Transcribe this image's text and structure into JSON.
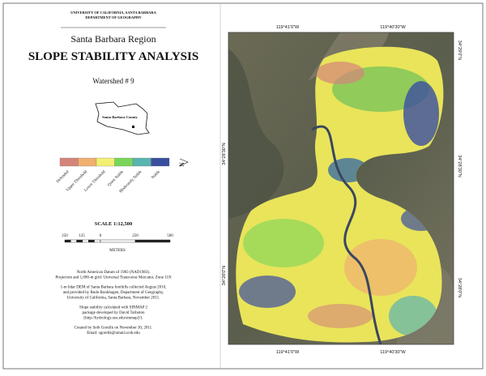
{
  "header": {
    "university": "UNIVERSITY OF CALIFORNIA, SANTA BARBARA",
    "department": "DEPARTMENT OF GEOGRAPHY",
    "region": "Santa Barbara Region",
    "title": "SLOPE STABILITY ANALYSIS",
    "watershed": "Watershed # 9"
  },
  "inset": {
    "label": "Santa Barbara County"
  },
  "legend": {
    "classes": [
      {
        "label": "Defended",
        "color": "#d4857a"
      },
      {
        "label": "Upper Threshold",
        "color": "#f0b070"
      },
      {
        "label": "Lower Threshold",
        "color": "#f3ef72"
      },
      {
        "label": "Quasi Stable",
        "color": "#7ad65a"
      },
      {
        "label": "Moderately Stable",
        "color": "#5ab4b0"
      },
      {
        "label": "Stable",
        "color": "#3a4ea0"
      }
    ],
    "north": "N"
  },
  "scale": {
    "title": "SCALE 1:12,500",
    "ticks": [
      "250",
      "125",
      "0",
      "250",
      "500"
    ],
    "units": "METERS"
  },
  "notes": [
    [
      "North American Datum of 1983 (NAD1983).",
      "Projection and 1,000-m grid: Universal Transverse Mercator, Zone 11N"
    ],
    [
      "1-m lidar DEM of Santa Barbara foothills collected August 2010,",
      "and provided by Bodo Bookhagen, Department of Geography,",
      "University of California, Santa Barbara, November 2011."
    ],
    [
      "Slope stability calculated with SINMAP 2",
      "package developed by David Tarboton",
      "(http://hydrology.usu.edu/sinmap2/)."
    ],
    [
      "Created by Seth Gorelik on November 30, 2011.",
      "Email: sgorelik@umail.ucsb.edu"
    ]
  ],
  "map": {
    "top_labels": [
      "119°41'0\"W",
      "119°40'30\"W"
    ],
    "bottom_labels": [
      "119°41'0\"W",
      "119°40'30\"W"
    ],
    "left_labels": [
      "34°28'30\"N",
      "34°28'0\"N"
    ],
    "right_labels": [
      "34°29'0\"N",
      "34°28'30\"N",
      "34°28'0\"N"
    ]
  }
}
